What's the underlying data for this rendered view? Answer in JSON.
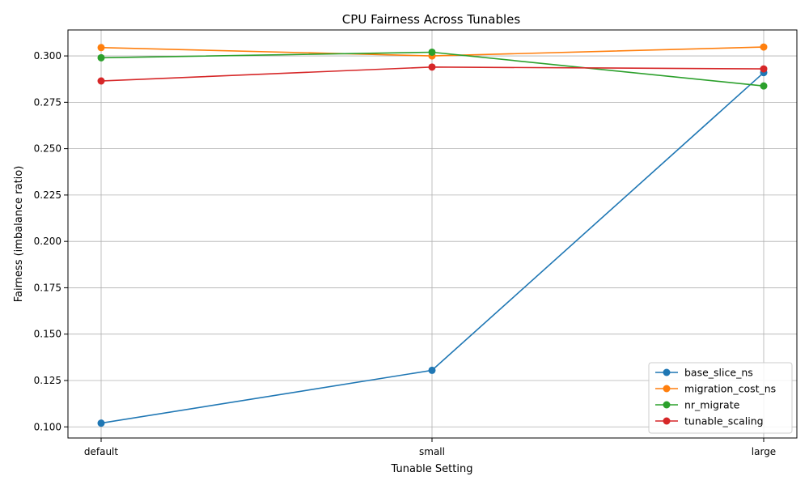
{
  "chart_data": {
    "type": "line",
    "title": "CPU Fairness Across Tunables",
    "xlabel": "Tunable Setting",
    "ylabel": "Fairness (imbalance ratio)",
    "categories": [
      "default",
      "small",
      "large"
    ],
    "ylim": [
      0.094,
      0.314
    ],
    "yticks": [
      "0.100",
      "0.125",
      "0.150",
      "0.175",
      "0.200",
      "0.225",
      "0.250",
      "0.275",
      "0.300"
    ],
    "grid": true,
    "legend_position": "lower-right",
    "series": [
      {
        "name": "base_slice_ns",
        "color": "#1f77b4",
        "values": [
          0.102,
          0.1305,
          0.291
        ]
      },
      {
        "name": "migration_cost_ns",
        "color": "#ff7f0e",
        "values": [
          0.3045,
          0.3,
          0.3048
        ]
      },
      {
        "name": "nr_migrate",
        "color": "#2ca02c",
        "values": [
          0.299,
          0.302,
          0.2838
        ]
      },
      {
        "name": "tunable_scaling",
        "color": "#d62728",
        "values": [
          0.2865,
          0.294,
          0.293
        ]
      }
    ]
  }
}
